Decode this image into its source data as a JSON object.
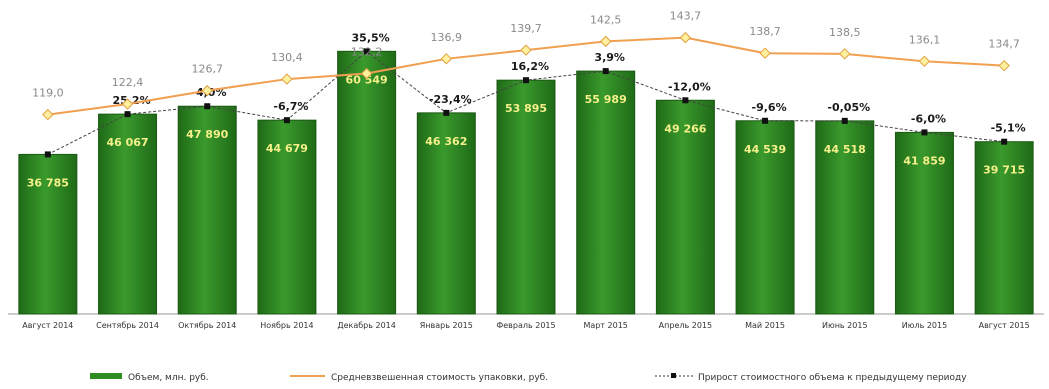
{
  "chart_data": {
    "type": "bar",
    "categories": [
      "Август 2014",
      "Сентябрь 2014",
      "Октябрь 2014",
      "Ноябрь 2014",
      "Декабрь 2014",
      "Январь 2015",
      "Февраль 2015",
      "Март 2015",
      "Апрель 2015",
      "Май 2015",
      "Июнь 2015",
      "Июль 2015",
      "Август 2015"
    ],
    "series": [
      {
        "name": "Объем, млн. руб.",
        "kind": "bar",
        "color": "#2e8b22",
        "values": [
          36785,
          46067,
          47890,
          44679,
          60549,
          46362,
          53895,
          55989,
          49266,
          44539,
          44518,
          41859,
          39715
        ],
        "labels": [
          "36 785",
          "46 067",
          "47 890",
          "44 679",
          "60 549",
          "46 362",
          "53 895",
          "55 989",
          "49 266",
          "44 539",
          "44 518",
          "41 859",
          "39 715"
        ]
      },
      {
        "name": "Средневзвешенная стоимость упаковки, руб.",
        "kind": "line",
        "color": "#f0a050",
        "marker_color": "#fff0a0",
        "values": [
          119.0,
          122.4,
          126.7,
          130.4,
          132.2,
          136.9,
          139.7,
          142.5,
          143.7,
          138.7,
          138.5,
          136.1,
          134.7
        ],
        "labels": [
          "119,0",
          "122,4",
          "126,7",
          "130,4",
          "132,2",
          "136,9",
          "139,7",
          "142,5",
          "143,7",
          "138,7",
          "138,5",
          "136,1",
          "134,7"
        ]
      },
      {
        "name": "Прирост стоимостного объема к предыдущему периоду",
        "kind": "dashed-line",
        "color": "#333333",
        "labels": [
          null,
          "25,2%",
          "4,0%",
          "-6,7%",
          "35,5%",
          "-23,4%",
          "16,2%",
          "3,9%",
          "-12,0%",
          "-9,6%",
          "-0,05%",
          "-6,0%",
          "-5,1%"
        ]
      }
    ],
    "bar_axis_range": [
      0,
      65000
    ],
    "price_axis_range": [
      55,
      150
    ],
    "grid": false,
    "legend_position": "bottom"
  }
}
